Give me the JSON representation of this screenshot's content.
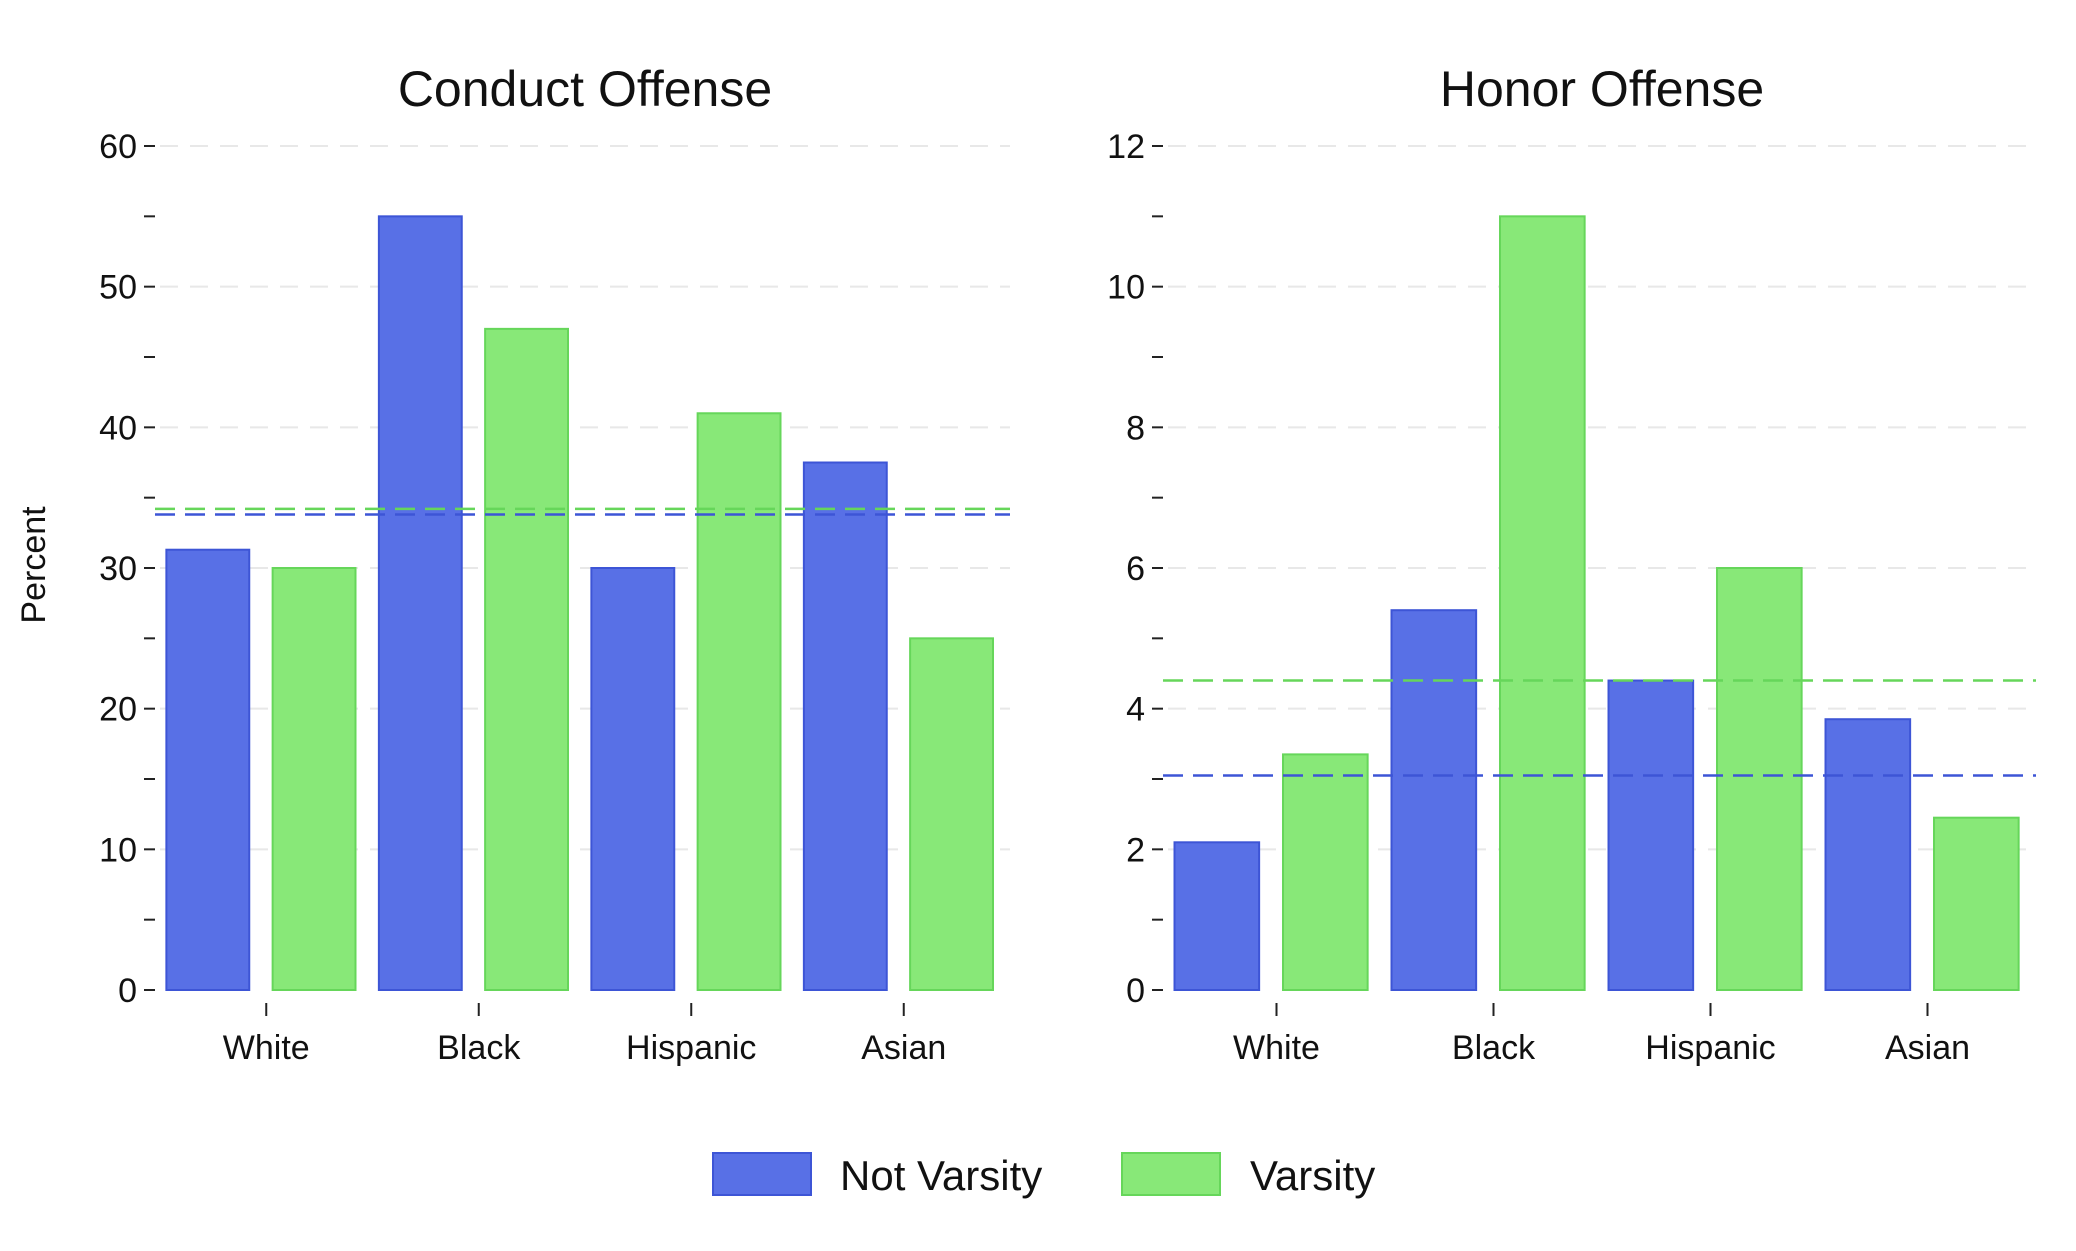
{
  "figure": {
    "y_axis_title": "Percent"
  },
  "legend": {
    "items": [
      {
        "label": "Not Varsity",
        "color": "#5870e6",
        "edge": "#3d55d6"
      },
      {
        "label": "Varsity",
        "color": "#88e878",
        "edge": "#66d65a"
      }
    ]
  },
  "chart_data": [
    {
      "type": "bar",
      "title": "Conduct Offense",
      "ylabel": "Percent",
      "xlabel": "",
      "categories": [
        "White",
        "Black",
        "Hispanic",
        "Asian"
      ],
      "series": [
        {
          "name": "Not Varsity",
          "values": [
            31.3,
            55.0,
            30.0,
            37.5
          ]
        },
        {
          "name": "Varsity",
          "values": [
            30.0,
            47.0,
            41.0,
            25.0
          ]
        }
      ],
      "reference_lines": [
        {
          "series": "Not Varsity",
          "value": 33.8
        },
        {
          "series": "Varsity",
          "value": 34.2
        }
      ],
      "ylim": [
        0,
        60
      ],
      "yticks": [
        0,
        10,
        20,
        30,
        40,
        50,
        60
      ],
      "yticks_minor": [
        5,
        15,
        25,
        35,
        45,
        55
      ],
      "grid": true
    },
    {
      "type": "bar",
      "title": "Honor Offense",
      "ylabel": "",
      "xlabel": "",
      "categories": [
        "White",
        "Black",
        "Hispanic",
        "Asian"
      ],
      "series": [
        {
          "name": "Not Varsity",
          "values": [
            2.1,
            5.4,
            4.4,
            3.85
          ]
        },
        {
          "name": "Varsity",
          "values": [
            3.35,
            11.0,
            6.0,
            2.45
          ]
        }
      ],
      "reference_lines": [
        {
          "series": "Not Varsity",
          "value": 3.05
        },
        {
          "series": "Varsity",
          "value": 4.4
        }
      ],
      "ylim": [
        0,
        12
      ],
      "yticks": [
        0,
        2,
        4,
        6,
        8,
        10,
        12
      ],
      "yticks_minor": [
        1,
        3,
        5,
        7,
        9,
        11
      ],
      "grid": true
    }
  ]
}
